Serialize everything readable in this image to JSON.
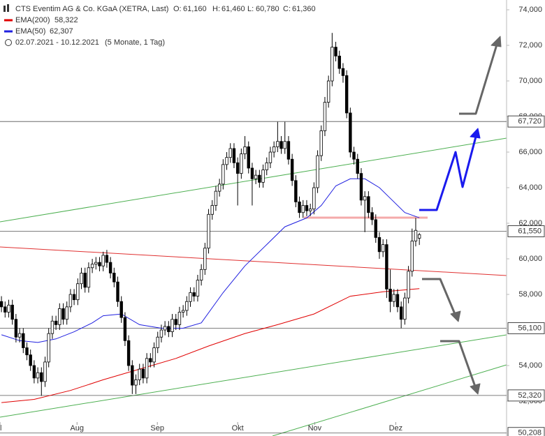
{
  "chart_data": {
    "type": "candlestick",
    "title": "CTS Eventim AG & Co. KGaA (XETRA, Last)",
    "ohlc_header": [
      {
        "label": "O:",
        "value": "61,160"
      },
      {
        "label": "H:",
        "value": "61,460"
      },
      {
        "label": "L:",
        "value": "60,780"
      },
      {
        "label": "C:",
        "value": "61,360"
      }
    ],
    "period": "02.07.2021 - 10.12.2021",
    "period_note": "(5 Monate, 1 Tag)",
    "up_color": "#ffffff",
    "down_color": "#000000",
    "candles": [
      [
        57600,
        57900,
        57000,
        57300
      ],
      [
        57300,
        57600,
        56700,
        57000
      ],
      [
        57000,
        57700,
        56700,
        57400
      ],
      [
        57400,
        57700,
        56300,
        56600
      ],
      [
        56600,
        56900,
        55300,
        55600
      ],
      [
        55600,
        56100,
        55300,
        55800
      ],
      [
        55800,
        56100,
        54700,
        55000
      ],
      [
        55000,
        55300,
        54300,
        54600
      ],
      [
        54600,
        54900,
        53700,
        54000
      ],
      [
        54000,
        54300,
        53000,
        53300
      ],
      [
        53300,
        53900,
        53000,
        53600
      ],
      [
        53600,
        53900,
        52300,
        53100
      ],
      [
        53100,
        54500,
        52800,
        54200
      ],
      [
        54200,
        56100,
        53900,
        55800
      ],
      [
        55800,
        56800,
        55500,
        56500
      ],
      [
        56500,
        56800,
        56000,
        56300
      ],
      [
        56300,
        57500,
        56000,
        57200
      ],
      [
        57200,
        57500,
        56300,
        56600
      ],
      [
        56600,
        57600,
        56300,
        57300
      ],
      [
        57300,
        58300,
        57000,
        58000
      ],
      [
        58000,
        58300,
        57400,
        57700
      ],
      [
        57700,
        58900,
        57400,
        58600
      ],
      [
        58600,
        59500,
        58300,
        59200
      ],
      [
        59200,
        59500,
        58100,
        58400
      ],
      [
        58400,
        59800,
        58100,
        59500
      ],
      [
        59500,
        60000,
        59200,
        59700
      ],
      [
        59700,
        60100,
        59400,
        59800
      ],
      [
        59800,
        60100,
        59300,
        59600
      ],
      [
        59600,
        60400,
        59300,
        60200
      ],
      [
        60200,
        60500,
        59500,
        59800
      ],
      [
        59800,
        60100,
        58900,
        59200
      ],
      [
        59200,
        59500,
        58400,
        58700
      ],
      [
        58700,
        59000,
        57300,
        57600
      ],
      [
        57600,
        57900,
        56400,
        56700
      ],
      [
        56700,
        57000,
        55100,
        55400
      ],
      [
        55400,
        55700,
        53700,
        54000
      ],
      [
        54000,
        54300,
        52400,
        52900
      ],
      [
        52900,
        53500,
        52400,
        53200
      ],
      [
        53200,
        54100,
        52900,
        53800
      ],
      [
        53800,
        54100,
        53000,
        53300
      ],
      [
        53300,
        54700,
        53000,
        54400
      ],
      [
        54400,
        54700,
        53900,
        54200
      ],
      [
        54200,
        55300,
        53900,
        55000
      ],
      [
        55000,
        55900,
        54700,
        55600
      ],
      [
        55600,
        56300,
        55300,
        56000
      ],
      [
        56000,
        56500,
        55700,
        56200
      ],
      [
        56200,
        56500,
        55600,
        55900
      ],
      [
        55900,
        56900,
        55600,
        56600
      ],
      [
        56600,
        56900,
        56000,
        56300
      ],
      [
        56300,
        57300,
        56000,
        57000
      ],
      [
        57000,
        57400,
        56700,
        57100
      ],
      [
        57100,
        57900,
        56800,
        57600
      ],
      [
        57600,
        58400,
        57300,
        58100
      ],
      [
        58100,
        58400,
        57600,
        57900
      ],
      [
        57900,
        59100,
        57600,
        58800
      ],
      [
        58800,
        59700,
        58500,
        59400
      ],
      [
        59400,
        60900,
        59100,
        60600
      ],
      [
        60600,
        62800,
        60300,
        62500
      ],
      [
        62500,
        63300,
        62200,
        63000
      ],
      [
        63000,
        64100,
        62700,
        63800
      ],
      [
        63800,
        64500,
        63500,
        64200
      ],
      [
        64200,
        65600,
        63900,
        65300
      ],
      [
        65300,
        66000,
        65000,
        65700
      ],
      [
        65700,
        66500,
        65400,
        66200
      ],
      [
        66200,
        66500,
        65100,
        65400
      ],
      [
        65400,
        65700,
        63000,
        64800
      ],
      [
        64800,
        66200,
        64500,
        65900
      ],
      [
        65900,
        66900,
        65600,
        66300
      ],
      [
        66300,
        66600,
        64800,
        65100
      ],
      [
        65100,
        65400,
        63000,
        64500
      ],
      [
        64500,
        65000,
        64200,
        64700
      ],
      [
        64700,
        65000,
        64000,
        64300
      ],
      [
        64300,
        65300,
        64000,
        65000
      ],
      [
        65000,
        65700,
        64700,
        65400
      ],
      [
        65400,
        66300,
        65100,
        66000
      ],
      [
        66000,
        66600,
        65700,
        66300
      ],
      [
        66300,
        67700,
        66000,
        66600
      ],
      [
        66600,
        66900,
        65900,
        66200
      ],
      [
        66200,
        67700,
        65900,
        66600
      ],
      [
        66600,
        66900,
        65300,
        65600
      ],
      [
        65600,
        65900,
        64100,
        64400
      ],
      [
        64400,
        64700,
        62900,
        63200
      ],
      [
        63200,
        63500,
        62300,
        62600
      ],
      [
        62600,
        63300,
        62300,
        63000
      ],
      [
        63000,
        63300,
        62400,
        62700
      ],
      [
        62700,
        63100,
        62400,
        62800
      ],
      [
        62800,
        64300,
        62500,
        64000
      ],
      [
        64000,
        66100,
        63700,
        65800
      ],
      [
        65800,
        67500,
        65500,
        67200
      ],
      [
        67200,
        69100,
        66900,
        68800
      ],
      [
        68800,
        70300,
        68500,
        70000
      ],
      [
        70000,
        72700,
        69700,
        71900
      ],
      [
        71900,
        72200,
        71100,
        71400
      ],
      [
        71400,
        71700,
        70400,
        70700
      ],
      [
        70700,
        71000,
        69900,
        70300
      ],
      [
        70300,
        70600,
        67900,
        68200
      ],
      [
        68200,
        68500,
        65700,
        66000
      ],
      [
        66000,
        66300,
        65300,
        65600
      ],
      [
        65600,
        65900,
        64500,
        64800
      ],
      [
        64800,
        65100,
        63000,
        63300
      ],
      [
        63300,
        63800,
        61500,
        63500
      ],
      [
        63500,
        63800,
        62300,
        62600
      ],
      [
        62600,
        62900,
        61900,
        62200
      ],
      [
        62200,
        62500,
        60900,
        61200
      ],
      [
        61200,
        61500,
        60000,
        60400
      ],
      [
        60400,
        61100,
        60100,
        60800
      ],
      [
        60800,
        61100,
        57800,
        58300
      ],
      [
        58300,
        59400,
        57000,
        57600
      ],
      [
        57600,
        58300,
        57300,
        58000
      ],
      [
        58000,
        58300,
        57000,
        57300
      ],
      [
        57300,
        57600,
        56100,
        56600
      ],
      [
        56600,
        58100,
        56300,
        57800
      ],
      [
        57800,
        59600,
        57500,
        59300
      ],
      [
        59300,
        61700,
        59000,
        61000
      ],
      [
        61000,
        62300,
        60700,
        61600
      ],
      [
        61160,
        61460,
        60780,
        61360
      ]
    ],
    "series": [
      {
        "name": "EMA(200)",
        "color": "#e00000",
        "last": {
          "value": 58322,
          "label": "58,322"
        },
        "x": [
          0,
          9,
          19,
          28,
          38,
          48,
          57,
          67,
          76,
          86,
          96,
          105,
          115
        ],
        "values": [
          51920,
          52100,
          52600,
          53200,
          53800,
          54400,
          55100,
          55800,
          56300,
          56900,
          57900,
          58150,
          58322
        ]
      },
      {
        "name": "EMA(50)",
        "color": "#2020e0",
        "last": {
          "value": 62307,
          "label": "62,307"
        },
        "x": [
          0,
          5,
          10,
          15,
          20,
          25,
          28,
          33,
          38,
          44,
          50,
          55,
          61,
          67,
          73,
          78,
          84,
          88,
          92,
          96,
          100,
          104,
          107,
          111,
          115
        ],
        "values": [
          55730,
          55400,
          55300,
          55500,
          55900,
          56400,
          56800,
          56900,
          56300,
          56100,
          56100,
          56400,
          58100,
          59600,
          60800,
          61800,
          62300,
          63000,
          64100,
          64500,
          64500,
          64000,
          63400,
          62600,
          62307
        ]
      }
    ],
    "levels": [
      {
        "value": 67720,
        "label": "67,720"
      },
      {
        "value": 61550,
        "label": "61,550"
      },
      {
        "value": 56100,
        "label": "56,100"
      },
      {
        "value": 52320,
        "label": "52,320"
      },
      {
        "value": 50208,
        "label": "50,208"
      }
    ],
    "xlim": [
      -0.4,
      139
    ],
    "ylim": [
      50040,
      74550
    ],
    "xticks": [
      {
        "value": -0.4,
        "label": "l"
      },
      {
        "value": 20.8,
        "label": "Aug"
      },
      {
        "value": 42.9,
        "label": "Sep"
      },
      {
        "value": 65,
        "label": "Okt"
      },
      {
        "value": 86.2,
        "label": "Nov"
      },
      {
        "value": 108.5,
        "label": "Dez"
      }
    ],
    "yticks": [
      {
        "value": 74000,
        "label": "74,000"
      },
      {
        "value": 72000,
        "label": "72,000"
      },
      {
        "value": 70000,
        "label": "70,000"
      },
      {
        "value": 68000,
        "label": "68,000"
      },
      {
        "value": 66000,
        "label": "66,000"
      },
      {
        "value": 64000,
        "label": "64,000"
      },
      {
        "value": 62000,
        "label": "62,000"
      },
      {
        "value": 60000,
        "label": "60,000"
      },
      {
        "value": 58000,
        "label": "58,000"
      },
      {
        "value": 56000,
        "label": "56,000"
      },
      {
        "value": 54000,
        "label": "54,000"
      },
      {
        "value": 52000,
        "label": "52,000"
      }
    ]
  }
}
